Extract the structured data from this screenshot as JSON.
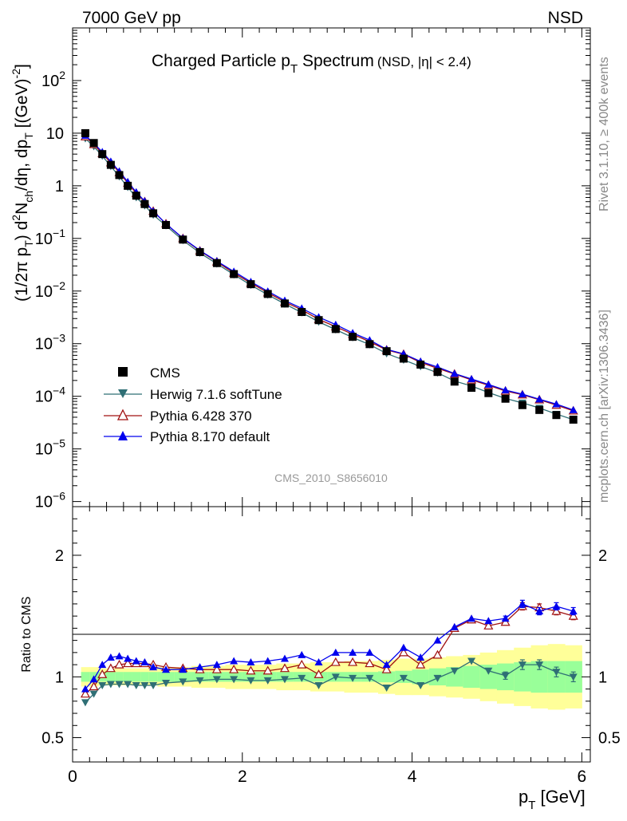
{
  "header": {
    "energy_label": "7000 GeV pp",
    "process_label": "NSD"
  },
  "side_text": {
    "rivet": "Rivet 3.1.10, ≥ 400k events",
    "mcplots": "mcplots.cern.ch [arXiv:1306.3436]"
  },
  "chart_data": [
    {
      "type": "scatter",
      "panel": "spectrum",
      "title": "Charged Particle pT Spectrum",
      "title_main": "Charged Particle p",
      "title_sub": "T",
      "title_rest": " Spectrum",
      "title_cut": "(NSD, |η| < 2.4)",
      "ylabel": "(1/2π pT) d²Nch/dη, dpT [(GeV)⁻²]",
      "ylabel_parts": {
        "a": "(1/2π p",
        "b": "T",
        "c": ") d",
        "d": "2",
        "e": "N",
        "f": "ch",
        "g": "/dη, dp",
        "h": "T",
        "i": " [(GeV)",
        "j": "-2",
        "k": "]"
      },
      "yscale": "log",
      "ylim": [
        8e-07,
        1000
      ],
      "xlim": [
        0,
        6.1
      ],
      "y_tick_labels": [
        "10⁻⁶",
        "10⁻⁵",
        "10⁻⁴",
        "10⁻³",
        "10⁻²",
        "10⁻¹",
        "1",
        "10",
        "10²"
      ],
      "y_ticks": [
        {
          "value": 1e-06,
          "base": "10",
          "exp": "−6"
        },
        {
          "value": 1e-05,
          "base": "10",
          "exp": "−5"
        },
        {
          "value": 0.0001,
          "base": "10",
          "exp": "−4"
        },
        {
          "value": 0.001,
          "base": "10",
          "exp": "−3"
        },
        {
          "value": 0.01,
          "base": "10",
          "exp": "−2"
        },
        {
          "value": 0.1,
          "base": "10",
          "exp": "−1"
        },
        {
          "value": 1,
          "base": "1",
          "exp": ""
        },
        {
          "value": 10,
          "base": "10",
          "exp": ""
        },
        {
          "value": 100,
          "base": "10",
          "exp": "2"
        }
      ],
      "legend_position": "lower-left",
      "watermark": "CMS_2010_S8656010",
      "x": [
        0.15,
        0.25,
        0.35,
        0.45,
        0.55,
        0.65,
        0.75,
        0.85,
        0.95,
        1.1,
        1.3,
        1.5,
        1.7,
        1.9,
        2.1,
        2.3,
        2.5,
        2.7,
        2.9,
        3.1,
        3.3,
        3.5,
        3.7,
        3.9,
        4.1,
        4.3,
        4.5,
        4.7,
        4.9,
        5.1,
        5.3,
        5.5,
        5.7,
        5.9
      ],
      "series": [
        {
          "name": "CMS",
          "marker": "square",
          "color": "#000000",
          "values": [
            10.0,
            6.5,
            4.0,
            2.5,
            1.6,
            1.0,
            0.65,
            0.45,
            0.3,
            0.18,
            0.095,
            0.055,
            0.034,
            0.021,
            0.0135,
            0.0088,
            0.0058,
            0.004,
            0.0028,
            0.0019,
            0.00135,
            0.00098,
            0.00072,
            0.00052,
            0.0004,
            0.00029,
            0.00019,
            0.000145,
            0.000115,
            9e-05,
            6.8e-05,
            5.5e-05,
            4.4e-05,
            3.6e-05
          ]
        },
        {
          "name": "Herwig 7.1.6 softTune",
          "marker": "triangle-down",
          "color": "#2f6f75",
          "values": [
            7.9,
            5.6,
            3.7,
            2.35,
            1.5,
            0.94,
            0.6,
            0.42,
            0.28,
            0.175,
            0.092,
            0.053,
            0.033,
            0.0205,
            0.013,
            0.0085,
            0.0057,
            0.0039,
            0.0026,
            0.00185,
            0.00131,
            0.00096,
            0.00065,
            0.00049,
            0.00037,
            0.00028,
            0.000195,
            0.000157,
            0.000118,
            9.1e-05,
            7.5e-05,
            6e-05,
            4.6e-05,
            3.6e-05
          ]
        },
        {
          "name": "Pythia 6.428 370",
          "marker": "triangle-up-open",
          "color": "#a01010",
          "values": [
            8.6,
            6.1,
            4.1,
            2.75,
            1.8,
            1.13,
            0.72,
            0.5,
            0.33,
            0.19,
            0.1,
            0.058,
            0.036,
            0.022,
            0.0142,
            0.0093,
            0.0062,
            0.0044,
            0.0029,
            0.0021,
            0.00151,
            0.00109,
            0.00076,
            0.00063,
            0.00044,
            0.00034,
            0.000265,
            0.000205,
            0.000162,
            0.000126,
            0.000107,
            8.6e-05,
            6.8e-05,
            5.3e-05
          ]
        },
        {
          "name": "Pythia 8.170 default",
          "marker": "triangle-up",
          "color": "#0000ee",
          "values": [
            9.0,
            6.4,
            4.4,
            2.9,
            1.88,
            1.19,
            0.76,
            0.51,
            0.33,
            0.19,
            0.101,
            0.059,
            0.037,
            0.0235,
            0.015,
            0.0099,
            0.0066,
            0.0047,
            0.0032,
            0.0023,
            0.0016,
            0.00117,
            0.00078,
            0.00064,
            0.00046,
            0.00036,
            0.00027,
            0.000213,
            0.000168,
            0.000131,
            0.00011,
            8.8e-05,
            7.1e-05,
            5.5e-05
          ]
        }
      ]
    },
    {
      "type": "scatter",
      "panel": "ratio",
      "ylabel": "Ratio to CMS",
      "xlabel": "pT [GeV]",
      "xlabel_parts": {
        "a": "p",
        "b": "T",
        "c": " [GeV]"
      },
      "xlim": [
        0,
        6.1
      ],
      "ylim": [
        0.3,
        2.4
      ],
      "x_ticks": [
        0,
        2,
        4,
        6
      ],
      "x_tick_labels": [
        "0",
        "2",
        "4",
        "6"
      ],
      "y_ticks": [
        0.5,
        1,
        2
      ],
      "y_tick_labels": [
        "0.5",
        "1",
        "2"
      ],
      "band_edges": [
        0.1,
        0.2,
        0.3,
        0.4,
        0.5,
        0.6,
        0.7,
        0.8,
        0.9,
        1.0,
        1.2,
        1.4,
        1.6,
        1.8,
        2.0,
        2.2,
        2.4,
        2.6,
        2.8,
        3.0,
        3.2,
        3.4,
        3.6,
        3.8,
        4.0,
        4.2,
        4.4,
        4.6,
        4.8,
        5.0,
        5.2,
        5.4,
        5.6,
        5.8,
        6.0
      ],
      "stat_band_halfwidth": [
        0.04,
        0.04,
        0.04,
        0.04,
        0.04,
        0.04,
        0.04,
        0.04,
        0.04,
        0.04,
        0.04,
        0.04,
        0.04,
        0.04,
        0.04,
        0.04,
        0.04,
        0.04,
        0.04,
        0.04,
        0.04,
        0.04,
        0.045,
        0.05,
        0.06,
        0.07,
        0.08,
        0.09,
        0.1,
        0.11,
        0.12,
        0.13,
        0.13,
        0.13
      ],
      "total_band_halfwidth": [
        0.08,
        0.08,
        0.07,
        0.07,
        0.07,
        0.07,
        0.07,
        0.07,
        0.07,
        0.08,
        0.08,
        0.09,
        0.09,
        0.1,
        0.1,
        0.1,
        0.11,
        0.11,
        0.12,
        0.12,
        0.13,
        0.13,
        0.14,
        0.15,
        0.15,
        0.16,
        0.17,
        0.18,
        0.2,
        0.22,
        0.24,
        0.26,
        0.27,
        0.26
      ],
      "series": [
        {
          "name": "Herwig 7.1.6 softTune",
          "marker": "triangle-down",
          "color": "#2f6f75",
          "values": [
            0.79,
            0.86,
            0.93,
            0.94,
            0.94,
            0.94,
            0.93,
            0.93,
            0.93,
            0.95,
            0.96,
            0.97,
            0.98,
            0.98,
            0.97,
            0.97,
            0.98,
            0.99,
            0.93,
            1.0,
            0.99,
            0.99,
            0.91,
            0.99,
            0.93,
            0.99,
            1.05,
            1.13,
            1.05,
            1.01,
            1.1,
            1.1,
            1.04,
            1.0
          ],
          "err": [
            0,
            0,
            0,
            0,
            0,
            0,
            0,
            0,
            0,
            0,
            0,
            0,
            0,
            0,
            0,
            0,
            0,
            0,
            0,
            0,
            0,
            0,
            0,
            0,
            0,
            0,
            0,
            0,
            0,
            0.03,
            0.04,
            0.04,
            0.04,
            0.04
          ]
        },
        {
          "name": "Pythia 6.428 370",
          "marker": "triangle-up-open",
          "color": "#a01010",
          "values": [
            0.86,
            0.92,
            1.02,
            1.07,
            1.1,
            1.11,
            1.11,
            1.11,
            1.1,
            1.08,
            1.07,
            1.06,
            1.06,
            1.06,
            1.05,
            1.05,
            1.07,
            1.1,
            1.02,
            1.12,
            1.12,
            1.11,
            1.06,
            1.2,
            1.1,
            1.18,
            1.4,
            1.47,
            1.42,
            1.45,
            1.58,
            1.57,
            1.54,
            1.5
          ],
          "err": [
            0,
            0,
            0,
            0,
            0,
            0,
            0,
            0,
            0,
            0,
            0,
            0,
            0,
            0,
            0,
            0,
            0,
            0,
            0,
            0,
            0,
            0,
            0,
            0,
            0,
            0,
            0,
            0,
            0,
            0.02,
            0.03,
            0.03,
            0.03,
            0.03
          ]
        },
        {
          "name": "Pythia 8.170 default",
          "marker": "triangle-up",
          "color": "#0000ee",
          "values": [
            0.9,
            0.98,
            1.1,
            1.16,
            1.17,
            1.15,
            1.13,
            1.12,
            1.08,
            1.06,
            1.06,
            1.08,
            1.1,
            1.13,
            1.12,
            1.13,
            1.15,
            1.18,
            1.12,
            1.2,
            1.2,
            1.2,
            1.1,
            1.24,
            1.16,
            1.3,
            1.41,
            1.48,
            1.46,
            1.48,
            1.6,
            1.54,
            1.58,
            1.54
          ],
          "err": [
            0,
            0,
            0,
            0,
            0,
            0,
            0,
            0,
            0,
            0,
            0,
            0,
            0,
            0,
            0,
            0,
            0,
            0,
            0,
            0,
            0,
            0,
            0,
            0,
            0,
            0,
            0,
            0,
            0,
            0.02,
            0.03,
            0.03,
            0.03,
            0.03
          ]
        }
      ]
    }
  ]
}
